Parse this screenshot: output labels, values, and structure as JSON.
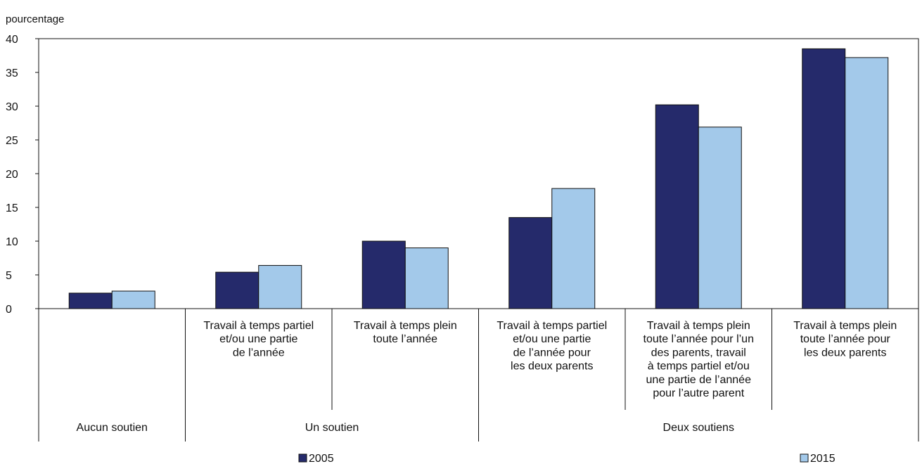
{
  "chart_data": {
    "type": "bar",
    "y_unit_label": "pourcentage",
    "ylim": [
      0,
      40
    ],
    "y_ticks": [
      0,
      5,
      10,
      15,
      20,
      25,
      30,
      35,
      40
    ],
    "categories": [
      [
        "Aucun soutien"
      ],
      [
        "Travail à temps partiel",
        "et/ou une partie",
        "de l’année"
      ],
      [
        "Travail à temps plein",
        "toute l’année"
      ],
      [
        "Travail à temps partiel",
        "et/ou une partie",
        "de l’année pour",
        "les deux parents"
      ],
      [
        "Travail à temps plein",
        "toute l’année pour l’un",
        "des parents, travail",
        "à temps partiel et/ou",
        "une partie de l’année",
        "pour l’autre parent"
      ],
      [
        "Travail à temps plein",
        "toute l’année pour",
        "les deux parents"
      ]
    ],
    "groups": [
      {
        "label": "Aucun soutien",
        "categories": [
          0
        ]
      },
      {
        "label": "Un soutien",
        "categories": [
          1,
          2
        ]
      },
      {
        "label": "Deux soutiens",
        "categories": [
          3,
          4,
          5
        ]
      }
    ],
    "series": [
      {
        "name": "2005",
        "color": "#252a6b",
        "values": [
          2.3,
          5.4,
          10.0,
          13.5,
          30.2,
          38.5
        ]
      },
      {
        "name": "2015",
        "color": "#a3c9ea",
        "values": [
          2.6,
          6.4,
          9.0,
          17.8,
          26.9,
          37.2
        ]
      }
    ],
    "grid": false,
    "legend_position": "bottom"
  }
}
